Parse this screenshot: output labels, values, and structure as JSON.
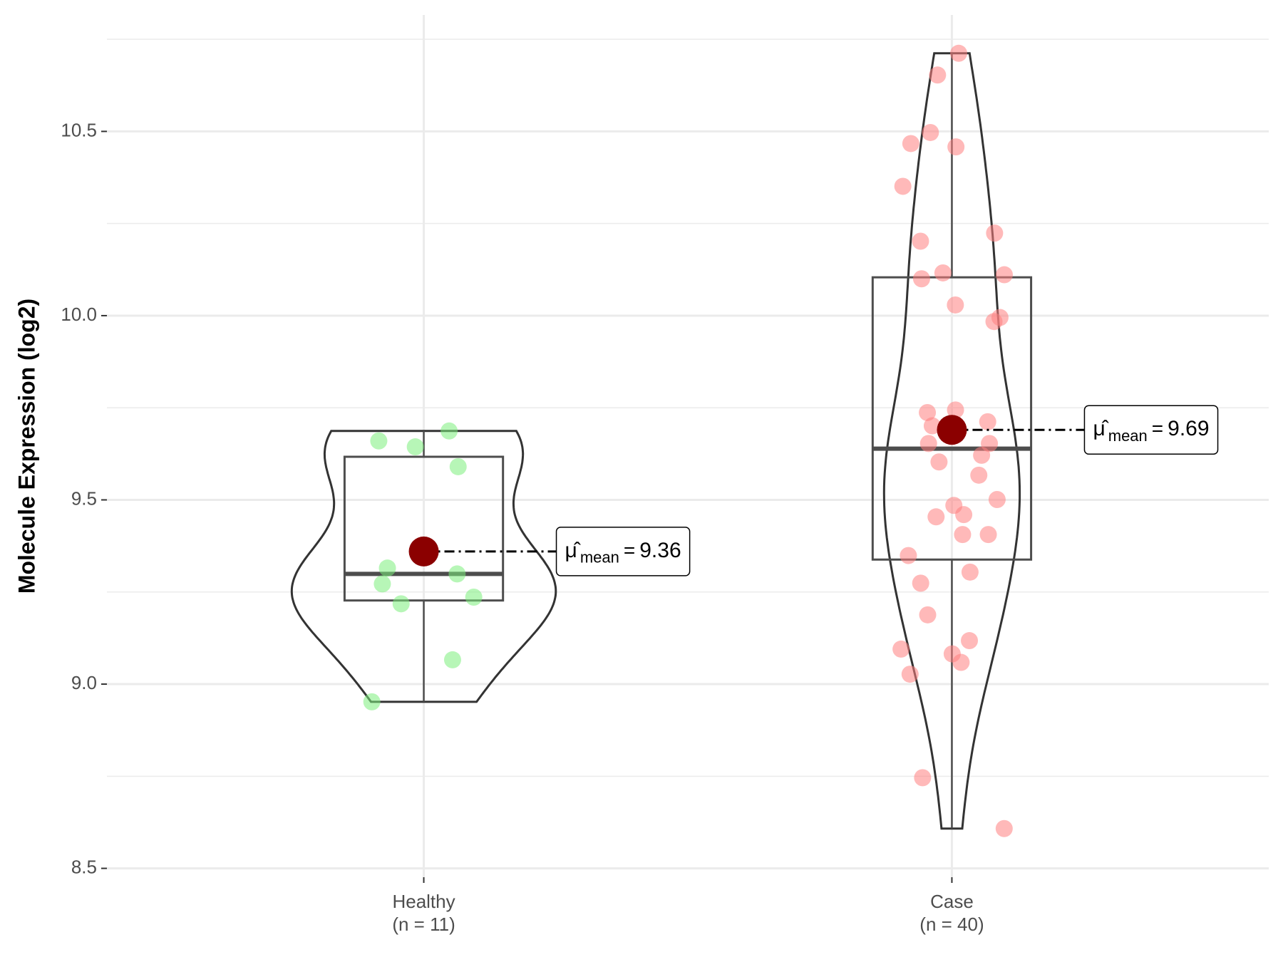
{
  "chart_data": {
    "type": "violin",
    "y_label": "Molecule Expression (log2)",
    "ylim": [
      8.476,
      10.816
    ],
    "yticks": [
      8.5,
      {
        "value": 9.0,
        "label": "9.0"
      },
      9.5,
      {
        "value": 10.0,
        "label": "10.0"
      },
      10.5
    ],
    "minor_yticks": [
      8.75,
      9.25,
      9.75,
      10.25,
      10.75
    ],
    "grid": true,
    "categories": [
      "Healthy",
      "Case"
    ],
    "n_labels": [
      "(n = 11)",
      "(n = 40)"
    ],
    "mean_symbol": "μ̂",
    "mean_subscript": "mean",
    "mean_operator": "=",
    "mean_color": "#8b0000",
    "groups": [
      {
        "name": "Healthy",
        "color": "#7cee7c",
        "values": [
          9.687,
          9.66,
          9.644,
          9.59,
          9.315,
          9.299,
          9.272,
          9.236,
          9.218,
          9.066,
          8.952
        ],
        "min": 8.952,
        "q1": 9.227,
        "median": 9.299,
        "q3": 9.617,
        "max": 9.687,
        "mean": 9.36
      },
      {
        "name": "Case",
        "color": "#ff7f7f",
        "values": [
          10.712,
          10.653,
          10.497,
          10.458,
          10.467,
          10.351,
          10.224,
          10.202,
          10.116,
          10.111,
          10.1,
          10.029,
          9.995,
          9.984,
          9.737,
          9.744,
          9.712,
          9.701,
          9.653,
          9.653,
          9.621,
          9.603,
          9.567,
          9.501,
          9.485,
          9.46,
          9.454,
          9.406,
          9.406,
          9.349,
          9.304,
          9.274,
          9.188,
          9.118,
          9.095,
          9.082,
          9.027,
          9.059,
          8.746,
          8.608
        ],
        "min": 8.608,
        "q1": 9.338,
        "median": 9.639,
        "q3": 10.104,
        "max": 10.712,
        "mean": 9.69
      }
    ]
  }
}
